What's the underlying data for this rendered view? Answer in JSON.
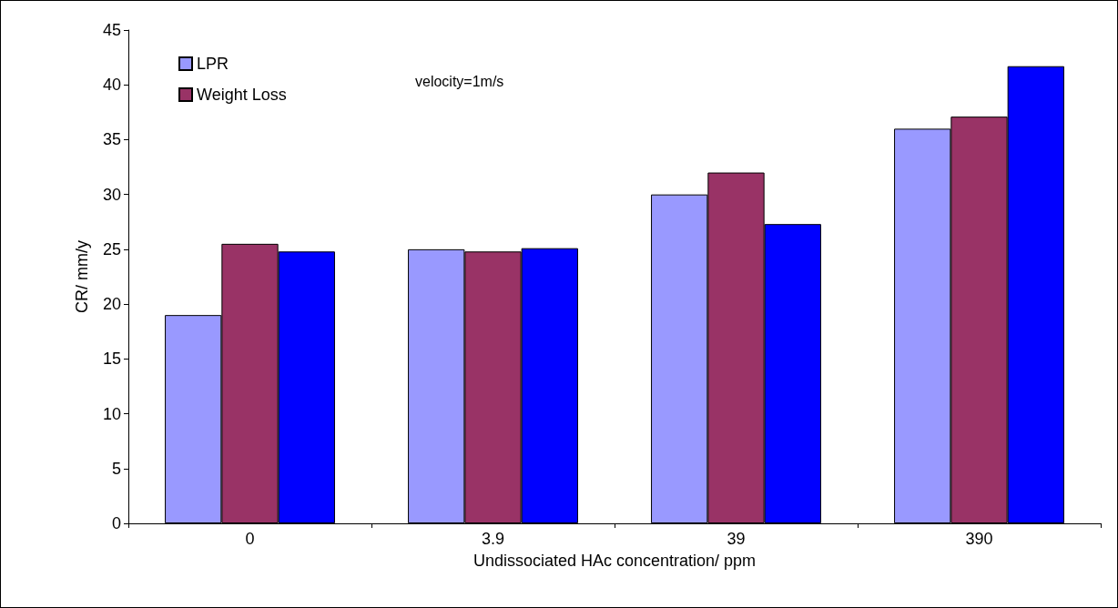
{
  "chart_data": {
    "type": "bar",
    "xlabel": "Undissociated HAc concentration/ ppm",
    "ylabel": "CR/ mm/y",
    "categories": [
      "0",
      "3.9",
      "39",
      "390"
    ],
    "series": [
      {
        "name": "LPR",
        "color": "#9999ff",
        "values": [
          19,
          25,
          30,
          36
        ]
      },
      {
        "name": "Weight Loss",
        "color": "#993366",
        "values": [
          25.5,
          24.8,
          32,
          37.1
        ]
      },
      {
        "color": "#0000ff",
        "values": [
          24.8,
          25.1,
          27.3,
          41.7
        ]
      }
    ],
    "ylim": [
      0,
      45
    ],
    "yticks": [
      0,
      5,
      10,
      15,
      20,
      25,
      30,
      35,
      40,
      45
    ],
    "grid": false,
    "legend": "top left",
    "annotations": [
      "velocity=1m/s"
    ]
  }
}
